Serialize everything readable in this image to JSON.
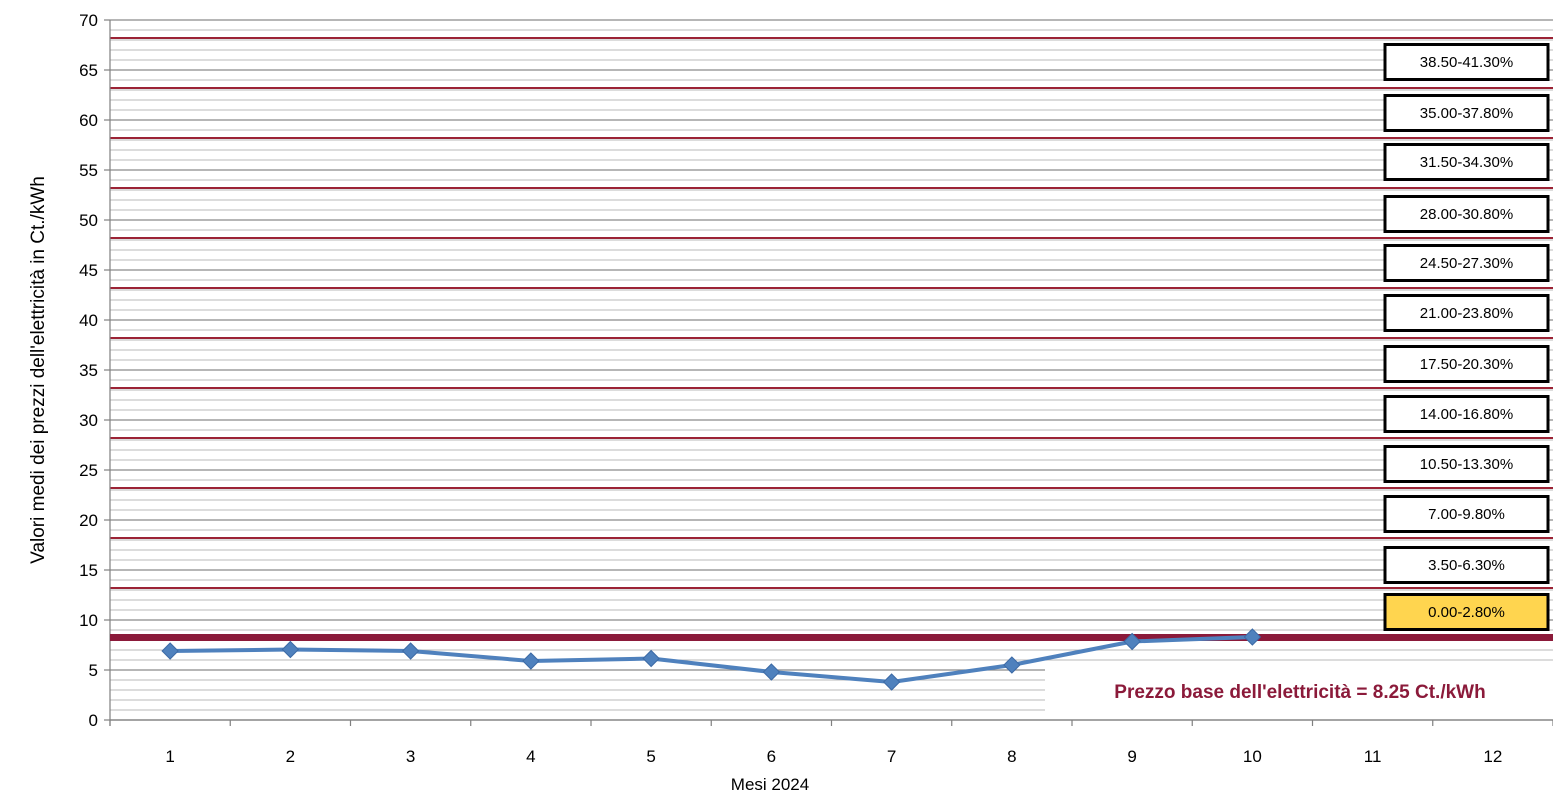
{
  "chart_data": {
    "type": "line",
    "title": "",
    "xlabel": "Mesi 2024",
    "ylabel": "Valori medi dei prezzi dell'elettricità in Ct./kWh",
    "xlim": [
      0.5,
      12.5
    ],
    "ylim": [
      0,
      70
    ],
    "y_major_step": 5,
    "y_minor_step": 1,
    "grid": true,
    "categories": [
      "1",
      "2",
      "3",
      "4",
      "5",
      "6",
      "7",
      "8",
      "9",
      "10",
      "11",
      "12"
    ],
    "y_ticks": [
      "0",
      "5",
      "10",
      "15",
      "20",
      "25",
      "30",
      "35",
      "40",
      "45",
      "50",
      "55",
      "60",
      "65",
      "70"
    ],
    "series": [
      {
        "x": [
          1,
          2,
          3,
          4,
          5,
          6,
          7,
          8,
          9,
          10
        ],
        "values": [
          6.9,
          7.05,
          6.9,
          5.9,
          6.15,
          4.8,
          3.8,
          5.5,
          7.85,
          8.3
        ],
        "color": "#4f81bd"
      }
    ],
    "base_price": {
      "value": 8.25,
      "label": "Prezzo base dell'elettricità = 8.25 Ct./kWh",
      "color": "#8b1a3a"
    },
    "band_lines": {
      "values": [
        13.2,
        18.2,
        23.2,
        28.2,
        33.2,
        38.2,
        43.2,
        48.2,
        53.2,
        58.2,
        63.2,
        68.2
      ],
      "color": "#9b2335"
    },
    "band_labels": [
      {
        "text": "0.00-2.80%",
        "y_center": 10.8,
        "highlight": true
      },
      {
        "text": "3.50-6.30%",
        "y_center": 15.5,
        "highlight": false
      },
      {
        "text": "7.00-9.80%",
        "y_center": 20.6,
        "highlight": false
      },
      {
        "text": "10.50-13.30%",
        "y_center": 25.6,
        "highlight": false
      },
      {
        "text": "14.00-16.80%",
        "y_center": 30.6,
        "highlight": false
      },
      {
        "text": "17.50-20.30%",
        "y_center": 35.6,
        "highlight": false
      },
      {
        "text": "21.00-23.80%",
        "y_center": 40.7,
        "highlight": false
      },
      {
        "text": "24.50-27.30%",
        "y_center": 45.7,
        "highlight": false
      },
      {
        "text": "28.00-30.80%",
        "y_center": 50.6,
        "highlight": false
      },
      {
        "text": "31.50-34.30%",
        "y_center": 55.8,
        "highlight": false
      },
      {
        "text": "35.00-37.80%",
        "y_center": 60.7,
        "highlight": false
      },
      {
        "text": "38.50-41.30%",
        "y_center": 65.8,
        "highlight": false
      }
    ],
    "highlight_color": "#ffd54f"
  }
}
